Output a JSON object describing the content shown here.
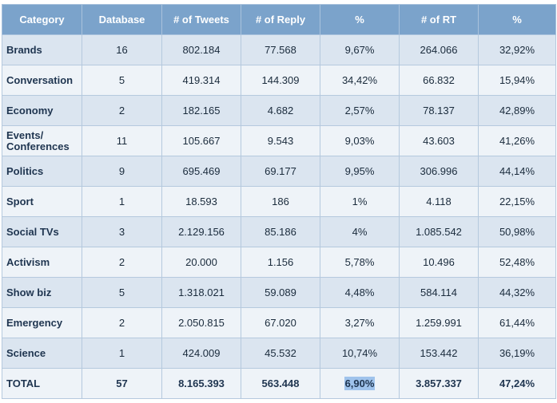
{
  "header": {
    "category": "Category",
    "database": "Database",
    "tweets": "# of Tweets",
    "reply": "# of Reply",
    "pct1": "%",
    "rt": "# of RT",
    "pct2": "%"
  },
  "rows": [
    {
      "category": "Brands",
      "database": "16",
      "tweets": "802.184",
      "reply": "77.568",
      "pct1": "9,67%",
      "rt": "264.066",
      "pct2": "32,92%"
    },
    {
      "category": "Conversation",
      "database": "5",
      "tweets": "419.314",
      "reply": "144.309",
      "pct1": "34,42%",
      "rt": "66.832",
      "pct2": "15,94%"
    },
    {
      "category": "Economy",
      "database": "2",
      "tweets": "182.165",
      "reply": "4.682",
      "pct1": "2,57%",
      "rt": "78.137",
      "pct2": "42,89%"
    },
    {
      "category": "Events/ Conferences",
      "database": "11",
      "tweets": "105.667",
      "reply": "9.543",
      "pct1": "9,03%",
      "rt": "43.603",
      "pct2": "41,26%"
    },
    {
      "category": "Politics",
      "database": "9",
      "tweets": "695.469",
      "reply": "69.177",
      "pct1": "9,95%",
      "rt": "306.996",
      "pct2": "44,14%"
    },
    {
      "category": "Sport",
      "database": "1",
      "tweets": "18.593",
      "reply": "186",
      "pct1": "1%",
      "rt": "4.118",
      "pct2": "22,15%"
    },
    {
      "category": "Social TVs",
      "database": "3",
      "tweets": "2.129.156",
      "reply": "85.186",
      "pct1": "4%",
      "rt": "1.085.542",
      "pct2": "50,98%"
    },
    {
      "category": "Activism",
      "database": "2",
      "tweets": "20.000",
      "reply": "1.156",
      "pct1": "5,78%",
      "rt": "10.496",
      "pct2": "52,48%"
    },
    {
      "category": "Show biz",
      "database": "5",
      "tweets": "1.318.021",
      "reply": "59.089",
      "pct1": "4,48%",
      "rt": "584.114",
      "pct2": "44,32%"
    },
    {
      "category": "Emergency",
      "database": "2",
      "tweets": "2.050.815",
      "reply": "67.020",
      "pct1": "3,27%",
      "rt": "1.259.991",
      "pct2": "61,44%"
    },
    {
      "category": "Science",
      "database": "1",
      "tweets": "424.009",
      "reply": "45.532",
      "pct1": "10,74%",
      "rt": "153.442",
      "pct2": "36,19%"
    }
  ],
  "total": {
    "category": "TOTAL",
    "database": "57",
    "tweets": "8.165.393",
    "reply": "563.448",
    "pct1": "6,90%",
    "rt": "3.857.337",
    "pct2": "47,24%"
  },
  "colors": {
    "header_bg": "#7ba3cb",
    "row_odd": "#dbe5f0",
    "row_even": "#eef3f8",
    "highlight": "#9fc3ec"
  }
}
